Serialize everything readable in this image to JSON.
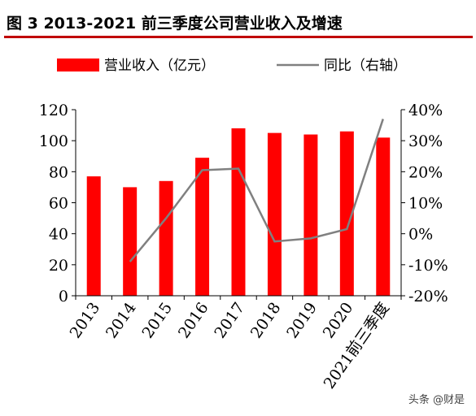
{
  "figure_title": "图 3 2013-2021 前三季度公司营业收入及增速",
  "watermark": "头条 @财是",
  "colors": {
    "bar": "#ff0000",
    "line": "#808080",
    "title_rule": "#c00000"
  },
  "chart_data": {
    "type": "bar",
    "categories": [
      "2013",
      "2014",
      "2015",
      "2016",
      "2017",
      "2018",
      "2019",
      "2020",
      "2021前三季度"
    ],
    "series": [
      {
        "name": "营业收入（亿元）",
        "type": "bar",
        "axis": "left",
        "values": [
          77,
          70,
          74,
          89,
          108,
          105,
          104,
          106,
          102
        ]
      },
      {
        "name": "同比（右轴）",
        "type": "line",
        "axis": "right",
        "values": [
          null,
          -9,
          5,
          20.5,
          21,
          -2.5,
          -1.5,
          1.5,
          37
        ]
      }
    ],
    "y_left": {
      "min": 0,
      "max": 120,
      "ticks": [
        "0",
        "20",
        "40",
        "60",
        "80",
        "100",
        "120"
      ]
    },
    "y_right": {
      "min": -20,
      "max": 40,
      "ticks": [
        "-20%",
        "-10%",
        "0%",
        "10%",
        "20%",
        "30%",
        "40%"
      ]
    },
    "legend_placement": "top",
    "grid": false
  }
}
